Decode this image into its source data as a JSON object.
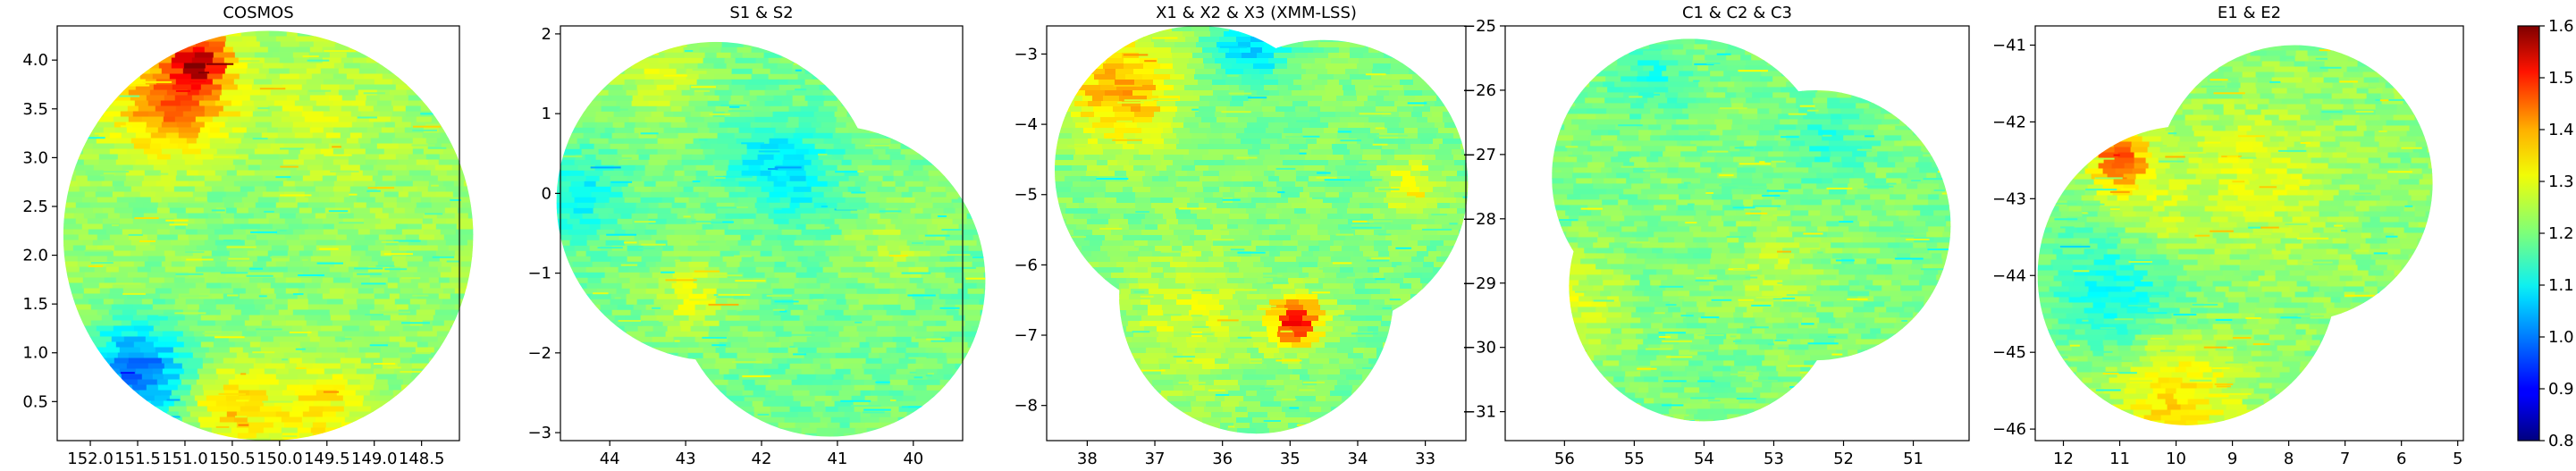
{
  "chart_data": [
    {
      "type": "heatmap",
      "title": "COSMOS",
      "xlabel": "",
      "ylabel": "",
      "xlim": [
        152.35,
        148.1
      ],
      "ylim": [
        0.1,
        4.35
      ],
      "x_ticks": [
        152.0,
        151.5,
        151.0,
        150.5,
        150.0,
        149.5,
        149.0,
        148.5
      ],
      "x_tick_labels": [
        "152.0",
        "151.5",
        "151.0",
        "150.5",
        "150.0",
        "149.5",
        "149.0",
        "148.5"
      ],
      "y_ticks": [
        0.5,
        1.0,
        1.5,
        2.0,
        2.5,
        3.0,
        3.5,
        4.0
      ],
      "y_tick_labels": [
        "0.5",
        "1.0",
        "1.5",
        "2.0",
        "2.5",
        "3.0",
        "3.5",
        "4.0"
      ],
      "footprints": [
        {
          "center": [
            150.12,
            2.2
          ],
          "radius_y": 2.1
        }
      ],
      "base_value": 1.22,
      "features": [
        {
          "x": 151.15,
          "y": 3.55,
          "r": 0.55,
          "value": 1.42
        },
        {
          "x": 150.85,
          "y": 4.0,
          "r": 0.3,
          "value": 1.5
        },
        {
          "x": 151.5,
          "y": 0.8,
          "r": 0.5,
          "value": 0.98
        },
        {
          "x": 150.5,
          "y": 0.45,
          "r": 0.4,
          "value": 1.34
        },
        {
          "x": 149.6,
          "y": 0.45,
          "r": 0.45,
          "value": 1.32
        },
        {
          "x": 149.7,
          "y": 3.3,
          "r": 0.8,
          "value": 1.27
        },
        {
          "x": 150.2,
          "y": 2.5,
          "r": 0.9,
          "value": 1.19
        }
      ]
    },
    {
      "type": "heatmap",
      "title": "S1 & S2",
      "xlabel": "",
      "ylabel": "",
      "xlim": [
        44.65,
        39.35
      ],
      "ylim": [
        -3.1,
        2.1
      ],
      "x_ticks": [
        44,
        43,
        42,
        41,
        40
      ],
      "x_tick_labels": [
        "44",
        "43",
        "42",
        "41",
        "40"
      ],
      "y_ticks": [
        -3,
        -2,
        -1,
        0,
        1,
        2
      ],
      "y_tick_labels": [
        "−3",
        "−2",
        "−1",
        "0",
        "1",
        "2"
      ],
      "footprints": [
        {
          "center": [
            42.6,
            -0.1
          ],
          "radius_y": 2.0
        },
        {
          "center": [
            41.1,
            -1.1
          ],
          "radius_y": 1.95
        }
      ],
      "base_value": 1.19,
      "features": [
        {
          "x": 44.4,
          "y": 0.0,
          "r": 0.5,
          "value": 1.1
        },
        {
          "x": 42.0,
          "y": 0.5,
          "r": 0.5,
          "value": 1.12
        },
        {
          "x": 41.5,
          "y": 0.2,
          "r": 0.5,
          "value": 1.1
        },
        {
          "x": 43.4,
          "y": 1.5,
          "r": 0.7,
          "value": 1.26
        },
        {
          "x": 42.9,
          "y": -1.3,
          "r": 0.5,
          "value": 1.27
        },
        {
          "x": 40.2,
          "y": -0.6,
          "r": 0.6,
          "value": 1.24
        }
      ]
    },
    {
      "type": "heatmap",
      "title": "X1 & X2 & X3 (XMM-LSS)",
      "xlabel": "",
      "ylabel": "",
      "xlim": [
        38.6,
        32.4
      ],
      "ylim": [
        -8.5,
        -2.6
      ],
      "x_ticks": [
        38,
        37,
        36,
        35,
        34,
        33
      ],
      "x_tick_labels": [
        "38",
        "37",
        "36",
        "35",
        "34",
        "33"
      ],
      "y_ticks": [
        -8,
        -7,
        -6,
        -5,
        -4,
        -3
      ],
      "y_tick_labels": [
        "−8",
        "−7",
        "−6",
        "−5",
        "−4",
        "−3"
      ],
      "footprints": [
        {
          "center": [
            36.35,
            -4.65
          ],
          "radius_y": 2.05
        },
        {
          "center": [
            34.5,
            -4.85
          ],
          "radius_y": 2.05
        },
        {
          "center": [
            35.5,
            -6.45
          ],
          "radius_y": 1.95
        }
      ],
      "base_value": 1.2,
      "features": [
        {
          "x": 37.5,
          "y": -3.5,
          "r": 0.8,
          "value": 1.37
        },
        {
          "x": 35.6,
          "y": -2.9,
          "r": 0.5,
          "value": 1.06
        },
        {
          "x": 34.9,
          "y": -6.8,
          "r": 0.35,
          "value": 1.5
        },
        {
          "x": 36.5,
          "y": -6.8,
          "r": 1.0,
          "value": 1.27
        },
        {
          "x": 33.2,
          "y": -4.9,
          "r": 0.4,
          "value": 1.3
        }
      ]
    },
    {
      "type": "heatmap",
      "title": "C1 & C2 & C3",
      "xlabel": "",
      "ylabel": "",
      "xlim": [
        56.85,
        50.2
      ],
      "ylim": [
        -31.45,
        -25.0
      ],
      "x_ticks": [
        56,
        55,
        54,
        53,
        52,
        51
      ],
      "x_tick_labels": [
        "56",
        "55",
        "54",
        "53",
        "52",
        "51"
      ],
      "y_ticks": [
        -31,
        -30,
        -29,
        -28,
        -27,
        -26,
        -25
      ],
      "y_tick_labels": [
        "−31",
        "−30",
        "−29",
        "−28",
        "−27",
        "−26",
        "−25"
      ],
      "footprints": [
        {
          "center": [
            54.2,
            -27.35
          ],
          "radius_y": 2.15
        },
        {
          "center": [
            52.4,
            -28.1
          ],
          "radius_y": 2.1
        },
        {
          "center": [
            54.0,
            -29.05
          ],
          "radius_y": 2.1
        }
      ],
      "base_value": 1.2,
      "features": [
        {
          "x": 55.9,
          "y": -29.3,
          "r": 0.8,
          "value": 1.27
        },
        {
          "x": 53.0,
          "y": -28.8,
          "r": 0.7,
          "value": 1.25
        },
        {
          "x": 54.8,
          "y": -25.8,
          "r": 0.6,
          "value": 1.13
        },
        {
          "x": 52.2,
          "y": -26.8,
          "r": 0.6,
          "value": 1.14
        }
      ]
    },
    {
      "type": "heatmap",
      "title": "E1 & E2",
      "xlabel": "",
      "ylabel": "",
      "xlim": [
        12.5,
        4.9
      ],
      "ylim": [
        -46.15,
        -40.75
      ],
      "x_ticks": [
        12,
        11,
        10,
        9,
        8,
        7,
        6,
        5
      ],
      "x_tick_labels": [
        "12",
        "11",
        "10",
        "9",
        "8",
        "7",
        "6",
        "5"
      ],
      "y_ticks": [
        -46,
        -45,
        -44,
        -43,
        -42,
        -41
      ],
      "y_tick_labels": [
        "−46",
        "−45",
        "−44",
        "−43",
        "−42",
        "−41"
      ],
      "footprints": [
        {
          "center": [
            7.9,
            -42.8
          ],
          "radius_y": 1.8
        },
        {
          "center": [
            9.8,
            -44.0
          ],
          "radius_y": 1.95
        }
      ],
      "base_value": 1.21,
      "features": [
        {
          "x": 11.0,
          "y": -44.1,
          "r": 0.9,
          "value": 1.1
        },
        {
          "x": 10.0,
          "y": -45.6,
          "r": 0.8,
          "value": 1.33
        },
        {
          "x": 11.0,
          "y": -42.5,
          "r": 0.35,
          "value": 1.45
        },
        {
          "x": 8.5,
          "y": -42.7,
          "r": 1.0,
          "value": 1.27
        },
        {
          "x": 10.5,
          "y": -43.3,
          "r": 0.7,
          "value": 1.28
        }
      ]
    }
  ],
  "colorbar": {
    "cmap": "jet",
    "vmin": 0.8,
    "vmax": 1.6,
    "ticks": [
      0.8,
      0.9,
      1.0,
      1.1,
      1.2,
      1.3,
      1.4,
      1.5,
      1.6
    ],
    "tick_labels": [
      "0.8",
      "0.9",
      "1.0",
      "1.1",
      "1.2",
      "1.3",
      "1.4",
      "1.5",
      "1.6"
    ]
  }
}
